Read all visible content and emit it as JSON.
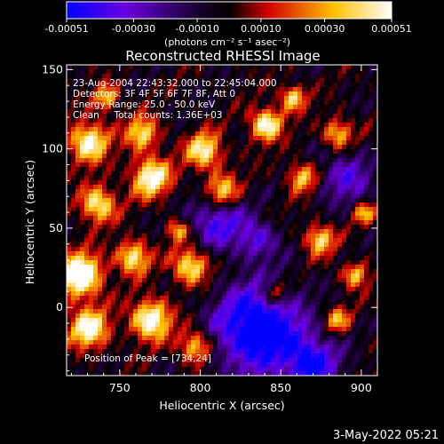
{
  "chart_data": {
    "type": "heatmap",
    "title": "Reconstructed RHESSI Image",
    "xlabel": "Heliocentric X (arcsec)",
    "ylabel": "Heliocentric Y (arcsec)",
    "xlim": [
      717,
      910
    ],
    "ylim": [
      -43,
      153
    ],
    "xticks": [
      750,
      800,
      850,
      900
    ],
    "yticks": [
      0,
      50,
      100,
      150
    ],
    "colorbar": {
      "min": -0.00051,
      "max": 0.00051,
      "tick_labels": [
        "-0.00051",
        "-0.00030",
        "-0.00010",
        "0.00010",
        "0.00030",
        "0.00051"
      ],
      "tick_values": [
        -0.00051,
        -0.0003,
        -0.0001,
        0.0001,
        0.0003,
        0.00051
      ],
      "units_label": "(photons cm⁻² s⁻¹ asec⁻²)",
      "colors": [
        "#0000ff",
        "#7f00ff",
        "#000000",
        "#ff0000",
        "#ffff00",
        "#ffffff"
      ]
    },
    "annotations": [
      "23-Aug-2004 22:43:32.000 to 22:45:04.000",
      "Detectors: 3F 4F 5F 6F 7F 8F, Att 0",
      "Energy Range: 25.0 - 50.0 keV",
      "Clean     Total counts: 1.36E+03"
    ],
    "peak_label": "Position of Peak = [734,24]",
    "peak_position": [
      734,
      24
    ],
    "grid": false
  },
  "footer": {
    "date": "3-May-2022 05:21"
  }
}
